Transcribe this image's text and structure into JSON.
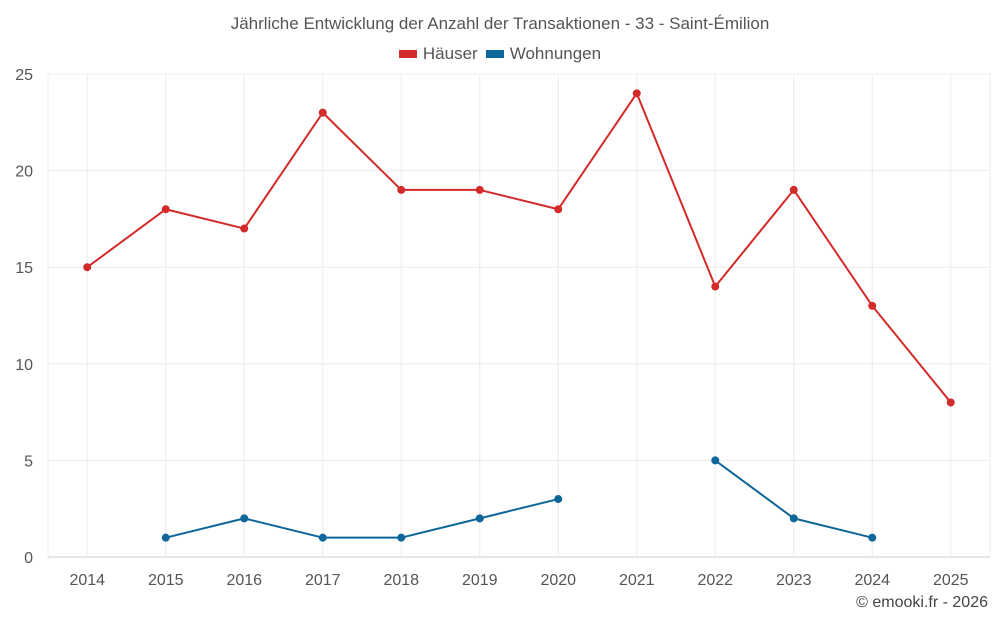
{
  "chart_data": {
    "type": "line",
    "title": "Jährliche Entwicklung der Anzahl der Transaktionen - 33 - Saint-Émilion",
    "categories": [
      "2014",
      "2015",
      "2016",
      "2017",
      "2018",
      "2019",
      "2020",
      "2021",
      "2022",
      "2023",
      "2024",
      "2025"
    ],
    "series": [
      {
        "name": "Häuser",
        "color": "#d32a2a",
        "values": [
          15,
          18,
          17,
          23,
          19,
          19,
          18,
          24,
          14,
          19,
          13,
          8
        ]
      },
      {
        "name": "Wohnungen",
        "color": "#0f6699",
        "values": [
          null,
          1,
          2,
          1,
          1,
          2,
          3,
          null,
          5,
          2,
          1,
          null
        ]
      }
    ],
    "ylim": [
      0,
      25
    ],
    "yticks": [
      0,
      5,
      10,
      15,
      20,
      25
    ],
    "xlabel": "",
    "ylabel": "",
    "grid": true,
    "legend": "top-center"
  },
  "credit": "© emooki.fr - 2026"
}
